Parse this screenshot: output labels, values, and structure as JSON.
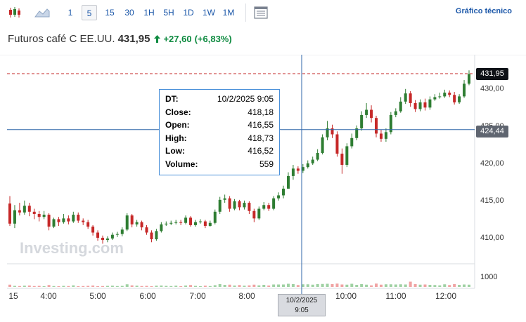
{
  "toolbar": {
    "intervals": [
      "1",
      "5",
      "15",
      "30",
      "1H",
      "5H",
      "1D",
      "1W",
      "1M"
    ],
    "active_interval": "5",
    "technical_chart_label": "Gráfico técnico"
  },
  "header": {
    "name": "Futuros café C EE.UU.",
    "price": "431,95",
    "change": "+27,60",
    "change_pct": "(+6,83%)",
    "accent_color": "#0d8a3f"
  },
  "tooltip": {
    "rows": [
      {
        "label": "DT:",
        "value": "10/2/2025 9:05"
      },
      {
        "label": "Close:",
        "value": "418,18"
      },
      {
        "label": "Open:",
        "value": "416,55"
      },
      {
        "label": "High:",
        "value": "418,73"
      },
      {
        "label": "Low:",
        "value": "416,52"
      },
      {
        "label": "Volume:",
        "value": "559"
      }
    ]
  },
  "tags": {
    "current_price": "431,95",
    "crosshair_price": "424,44",
    "crosshair_time_date": "10/2/2025",
    "crosshair_time_hour": "9:05"
  },
  "watermark": "Investing.com",
  "colors": {
    "up": "#2e7d32",
    "down": "#c62828",
    "crosshair": "#2f66a8"
  },
  "chart_data": {
    "type": "candlestick",
    "y_axis_labels": [
      "430,00",
      "425,00",
      "420,00",
      "415,00",
      "410,00"
    ],
    "y_axis_values": [
      430,
      425,
      420,
      415,
      410
    ],
    "volume_axis_label": "1000",
    "x_axis_labels": [
      "15",
      "4:00",
      "5:00",
      "6:00",
      "7:00",
      "8:00",
      "9:00",
      "10:00",
      "11:00",
      "12:00"
    ],
    "ylim": [
      406.5,
      434.5
    ],
    "crosshair": {
      "time": "9:05",
      "price": 424.44
    },
    "current_price": 431.95,
    "candles": [
      [
        414.5,
        411.8,
        415.5,
        411.5
      ],
      [
        411.8,
        413.6,
        414.3,
        411.2
      ],
      [
        413.6,
        413.3,
        414.6,
        412.9
      ],
      [
        413.3,
        414.2,
        414.9,
        413.0
      ],
      [
        414.2,
        413.4,
        414.6,
        412.8
      ],
      [
        413.4,
        413.1,
        413.8,
        412.4
      ],
      [
        413.1,
        412.7,
        413.5,
        412.1
      ],
      [
        412.7,
        413.0,
        413.5,
        412.4
      ],
      [
        413.0,
        411.4,
        413.2,
        410.9
      ],
      [
        411.4,
        412.4,
        412.6,
        411.2
      ],
      [
        412.4,
        412.0,
        412.7,
        411.5
      ],
      [
        412.0,
        412.5,
        413.1,
        411.8
      ],
      [
        412.5,
        412.1,
        412.9,
        411.7
      ],
      [
        412.1,
        413.0,
        413.4,
        411.9
      ],
      [
        413.0,
        412.2,
        413.3,
        411.9
      ],
      [
        412.2,
        412.0,
        412.5,
        411.6
      ],
      [
        412.0,
        411.4,
        412.3,
        411.1
      ],
      [
        411.4,
        410.6,
        411.6,
        410.2
      ],
      [
        410.6,
        409.9,
        410.9,
        409.5
      ],
      [
        409.9,
        409.6,
        410.2,
        409.1
      ],
      [
        409.6,
        409.8,
        410.1,
        409.3
      ],
      [
        409.8,
        410.3,
        410.6,
        409.6
      ],
      [
        410.3,
        410.4,
        410.7,
        410.0
      ],
      [
        410.4,
        411.0,
        411.3,
        410.1
      ],
      [
        411.0,
        412.9,
        413.2,
        410.8
      ],
      [
        412.9,
        411.7,
        413.1,
        411.3
      ],
      [
        411.7,
        412.0,
        412.3,
        411.4
      ],
      [
        412.0,
        411.3,
        412.2,
        410.9
      ],
      [
        411.3,
        410.6,
        411.6,
        410.3
      ],
      [
        410.6,
        409.7,
        410.9,
        409.3
      ],
      [
        409.7,
        410.8,
        411.1,
        409.5
      ],
      [
        410.8,
        411.7,
        412.0,
        410.6
      ],
      [
        411.7,
        411.8,
        412.1,
        411.5
      ],
      [
        411.8,
        411.9,
        412.2,
        411.6
      ],
      [
        411.9,
        412.0,
        412.3,
        411.7
      ],
      [
        412.0,
        411.9,
        412.3,
        411.6
      ],
      [
        411.9,
        412.6,
        412.9,
        411.7
      ],
      [
        412.6,
        411.6,
        412.8,
        411.4
      ],
      [
        411.6,
        412.0,
        412.3,
        411.4
      ],
      [
        412.0,
        412.1,
        412.4,
        411.8
      ],
      [
        412.1,
        411.5,
        412.3,
        411.2
      ],
      [
        411.5,
        411.9,
        412.2,
        411.4
      ],
      [
        411.9,
        413.4,
        413.7,
        411.7
      ],
      [
        413.4,
        415.0,
        415.4,
        413.1
      ],
      [
        415.0,
        415.2,
        415.7,
        414.6
      ],
      [
        415.2,
        413.8,
        415.5,
        413.4
      ],
      [
        413.8,
        414.8,
        415.1,
        413.6
      ],
      [
        414.8,
        414.0,
        415.0,
        413.6
      ],
      [
        414.0,
        414.6,
        414.9,
        413.7
      ],
      [
        414.6,
        413.5,
        414.8,
        413.1
      ],
      [
        413.5,
        412.5,
        413.8,
        412.0
      ],
      [
        412.5,
        413.8,
        414.1,
        412.3
      ],
      [
        413.8,
        414.3,
        414.7,
        413.6
      ],
      [
        414.3,
        413.8,
        414.6,
        413.5
      ],
      [
        413.8,
        415.2,
        415.5,
        413.6
      ],
      [
        415.2,
        415.6,
        416.0,
        414.9
      ],
      [
        415.6,
        416.5,
        416.9,
        415.2
      ],
      [
        416.5,
        418.2,
        418.7,
        416.5
      ],
      [
        418.2,
        419.2,
        419.7,
        417.7
      ],
      [
        419.2,
        418.9,
        419.5,
        418.5
      ],
      [
        418.9,
        419.4,
        419.8,
        418.6
      ],
      [
        419.4,
        419.9,
        420.3,
        419.2
      ],
      [
        419.9,
        420.4,
        420.8,
        419.7
      ],
      [
        420.4,
        421.3,
        421.8,
        420.2
      ],
      [
        421.3,
        423.4,
        423.8,
        421.1
      ],
      [
        423.4,
        424.6,
        425.6,
        423.0
      ],
      [
        424.6,
        423.8,
        425.1,
        423.3
      ],
      [
        423.8,
        421.2,
        424.2,
        420.8
      ],
      [
        421.2,
        419.7,
        421.9,
        418.5
      ],
      [
        419.7,
        422.2,
        422.6,
        419.4
      ],
      [
        422.2,
        423.3,
        423.9,
        421.9
      ],
      [
        423.3,
        424.6,
        425.0,
        423.0
      ],
      [
        424.6,
        426.4,
        426.9,
        424.3
      ],
      [
        426.4,
        427.1,
        428.0,
        426.0
      ],
      [
        427.1,
        426.0,
        427.7,
        425.4
      ],
      [
        426.0,
        423.9,
        426.3,
        423.4
      ],
      [
        423.9,
        423.2,
        424.4,
        422.8
      ],
      [
        423.2,
        424.1,
        424.6,
        422.8
      ],
      [
        424.1,
        426.4,
        426.8,
        423.8
      ],
      [
        426.4,
        426.9,
        427.3,
        426.1
      ],
      [
        426.9,
        428.2,
        428.8,
        426.7
      ],
      [
        428.2,
        429.3,
        429.9,
        427.9
      ],
      [
        429.3,
        428.0,
        429.6,
        427.5
      ],
      [
        428.0,
        427.2,
        428.4,
        426.8
      ],
      [
        427.2,
        428.1,
        428.5,
        426.9
      ],
      [
        428.1,
        427.4,
        428.6,
        427.0
      ],
      [
        427.4,
        428.5,
        428.9,
        427.1
      ],
      [
        428.5,
        428.8,
        429.2,
        428.3
      ],
      [
        428.8,
        428.9,
        429.4,
        428.6
      ],
      [
        428.9,
        429.4,
        429.8,
        428.7
      ],
      [
        429.4,
        429.1,
        429.7,
        428.8
      ],
      [
        429.1,
        428.1,
        429.5,
        427.8
      ],
      [
        428.1,
        428.9,
        429.2,
        427.9
      ],
      [
        428.9,
        430.6,
        431.1,
        428.7
      ],
      [
        430.6,
        431.9,
        432.4,
        430.4
      ]
    ],
    "volumes": [
      130,
      60,
      50,
      70,
      80,
      50,
      60,
      40,
      110,
      50,
      40,
      60,
      50,
      90,
      40,
      50,
      60,
      80,
      40,
      50,
      60,
      70,
      50,
      60,
      150,
      90,
      70,
      50,
      60,
      40,
      70,
      80,
      60,
      50,
      70,
      40,
      80,
      110,
      60,
      40,
      70,
      50,
      100,
      160,
      120,
      130,
      80,
      110,
      70,
      90,
      130,
      90,
      120,
      80,
      140,
      140,
      140,
      180,
      160,
      110,
      150,
      150,
      130,
      160,
      170,
      180,
      160,
      190,
      140,
      130,
      180,
      120,
      160,
      130,
      90,
      190,
      130,
      150,
      150,
      140,
      150,
      140,
      300,
      160,
      130,
      140,
      120,
      110,
      90,
      150,
      110,
      160,
      120,
      140,
      130
    ]
  }
}
